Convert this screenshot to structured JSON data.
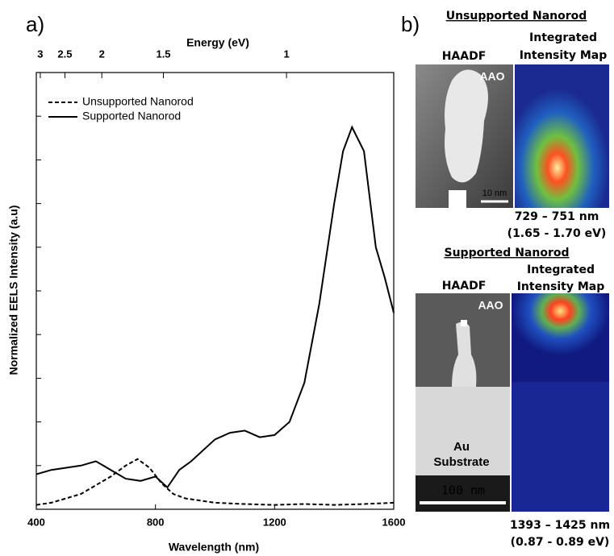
{
  "chart_data": {
    "type": "line",
    "panel_label": "a)",
    "x_label": "Wavelength (nm)",
    "y_label": "Normalized EELS Intensity (a.u)",
    "x2_label": "Energy (eV)",
    "xlim": [
      400,
      1600
    ],
    "xticks": [
      400,
      800,
      1200,
      1600
    ],
    "ylim": [
      0,
      10
    ],
    "yticks": [
      0,
      1,
      2,
      3,
      4,
      5,
      6,
      7,
      8,
      9,
      10
    ],
    "energy_ticks": [
      3,
      2.5,
      2,
      1.5,
      1
    ],
    "legend": "upper left",
    "series": [
      {
        "name": "Unsupported Nanorod",
        "color": "#000",
        "dash": true,
        "x": [
          400,
          450,
          500,
          550,
          600,
          650,
          700,
          740,
          780,
          820,
          860,
          900,
          1000,
          1100,
          1200,
          1300,
          1400,
          1500,
          1600
        ],
        "values": [
          0.1,
          0.15,
          0.25,
          0.35,
          0.55,
          0.75,
          1.0,
          1.15,
          0.95,
          0.6,
          0.35,
          0.25,
          0.15,
          0.12,
          0.1,
          0.12,
          0.1,
          0.12,
          0.15
        ]
      },
      {
        "name": "Supported Nanorod",
        "color": "#000",
        "dash": false,
        "x": [
          400,
          450,
          500,
          550,
          600,
          650,
          700,
          750,
          800,
          840,
          880,
          920,
          960,
          1000,
          1050,
          1100,
          1150,
          1200,
          1250,
          1300,
          1350,
          1400,
          1430,
          1460,
          1500,
          1540,
          1570,
          1600
        ],
        "values": [
          0.8,
          0.9,
          0.95,
          1.0,
          1.1,
          0.9,
          0.7,
          0.65,
          0.75,
          0.5,
          0.9,
          1.1,
          1.35,
          1.6,
          1.75,
          1.8,
          1.65,
          1.7,
          2.0,
          2.9,
          4.7,
          7.0,
          8.2,
          8.75,
          8.2,
          6.0,
          5.3,
          4.5
        ]
      }
    ]
  },
  "panel_b": {
    "label": "b)",
    "top": {
      "title": "Unsupported Nanorod",
      "haadf": "HAADF",
      "map_title_lines": [
        "Integrated",
        "Intensity Map"
      ],
      "aao": "AAO",
      "scale": "10 nm",
      "range_nm": "729 – 751 nm",
      "range_ev": "(1.65 - 1.70 eV)"
    },
    "bottom": {
      "title": "Supported Nanorod",
      "haadf": "HAADF",
      "map_title_lines": [
        "Integrated",
        "Intensity Map"
      ],
      "aao": "AAO",
      "substrate_lines": [
        "Au",
        "Substrate"
      ],
      "scale": "100 nm",
      "range_nm": "1393 – 1425 nm",
      "range_ev": "(0.87 - 0.89 eV)"
    }
  }
}
